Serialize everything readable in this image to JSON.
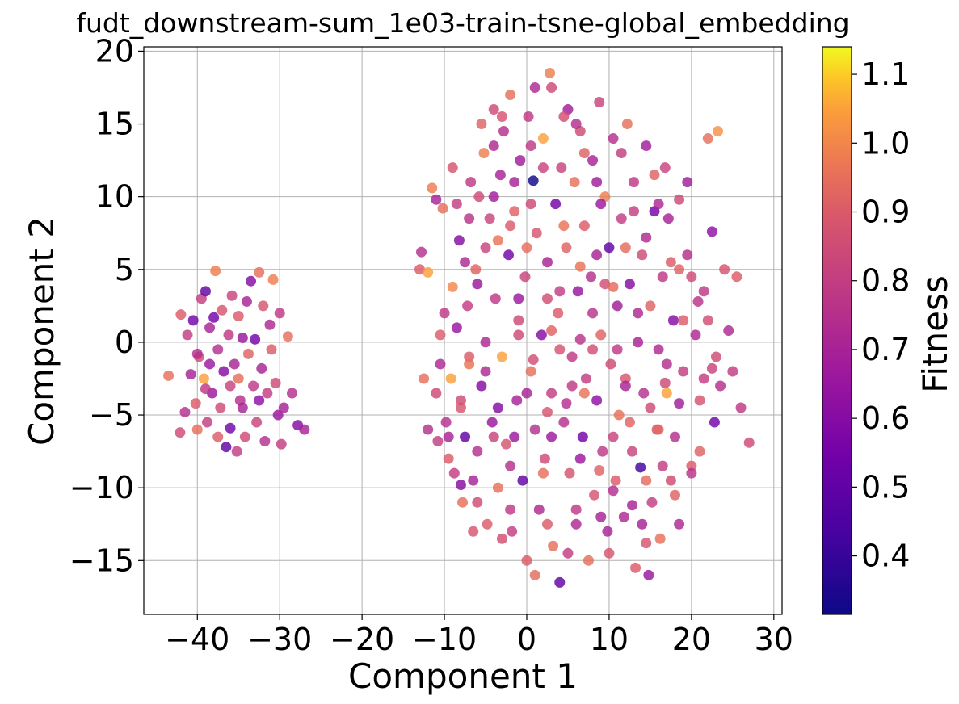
{
  "chart_data": {
    "type": "scatter",
    "title": "fudt_downstream-sum_1e03-train-tsne-global_embedding",
    "xlabel": "Component 1",
    "ylabel": "Component 2",
    "xlim": [
      -46.5,
      31
    ],
    "ylim": [
      -18.7,
      20.3
    ],
    "xticks": [
      -40,
      -30,
      -20,
      -10,
      0,
      10,
      20,
      30
    ],
    "yticks": [
      -15,
      -10,
      -5,
      0,
      5,
      10,
      15,
      20
    ],
    "xtick_labels": [
      "−40",
      "−30",
      "−20",
      "−10",
      "0",
      "10",
      "20",
      "30"
    ],
    "ytick_labels": [
      "−15",
      "−10",
      "−5",
      "0",
      "5",
      "10",
      "15",
      "20"
    ],
    "grid": true,
    "colorbar": {
      "label": "Fitness",
      "colormap": "plasma",
      "range": [
        0.315,
        1.14
      ],
      "ticks": [
        0.4,
        0.5,
        0.6,
        0.7,
        0.8,
        0.9,
        1.0,
        1.1
      ],
      "tick_labels": [
        "0.4",
        "0.5",
        "0.6",
        "0.7",
        "0.8",
        "0.9",
        "1.0",
        "1.1"
      ]
    },
    "points": [
      [
        -43.5,
        -2.3,
        0.95
      ],
      [
        -42.0,
        1.9,
        0.9
      ],
      [
        -42.1,
        -6.2,
        0.85
      ],
      [
        -41.5,
        -4.8,
        0.75
      ],
      [
        -41.2,
        0.5,
        0.8
      ],
      [
        -40.8,
        -2.2,
        0.7
      ],
      [
        -40.5,
        1.5,
        0.55
      ],
      [
        -40.2,
        -4.2,
        0.9
      ],
      [
        -40.0,
        -6.0,
        0.95
      ],
      [
        -39.8,
        -1.0,
        0.85
      ],
      [
        -39.5,
        3.0,
        0.8
      ],
      [
        -39.2,
        -2.5,
        1.05
      ],
      [
        -39.0,
        3.5,
        0.5
      ],
      [
        -38.8,
        -5.5,
        0.8
      ],
      [
        -38.5,
        1.0,
        0.7
      ],
      [
        -38.2,
        -3.5,
        0.65
      ],
      [
        -38.0,
        1.7,
        0.55
      ],
      [
        -37.8,
        4.9,
        0.98
      ],
      [
        -37.5,
        -0.5,
        0.75
      ],
      [
        -37.2,
        -4.5,
        0.85
      ],
      [
        -37.0,
        2.2,
        0.88
      ],
      [
        -36.8,
        -2.0,
        0.6
      ],
      [
        -36.5,
        -7.2,
        0.5
      ],
      [
        -36.2,
        0.5,
        0.78
      ],
      [
        -36.0,
        -5.9,
        0.55
      ],
      [
        -35.8,
        3.2,
        0.82
      ],
      [
        -35.5,
        -1.5,
        0.7
      ],
      [
        -35.2,
        -7.5,
        0.8
      ],
      [
        -35.0,
        1.8,
        0.9
      ],
      [
        -34.8,
        -4.0,
        0.75
      ],
      [
        -34.5,
        0.3,
        0.65
      ],
      [
        -34.2,
        -6.5,
        0.85
      ],
      [
        -34.0,
        2.8,
        0.7
      ],
      [
        -33.8,
        -0.8,
        0.92
      ],
      [
        -33.5,
        4.2,
        0.6
      ],
      [
        -33.2,
        -3.0,
        0.78
      ],
      [
        -33.0,
        0.2,
        0.55
      ],
      [
        -32.8,
        -5.5,
        0.82
      ],
      [
        -32.5,
        4.8,
        0.95
      ],
      [
        -32.2,
        -1.8,
        0.7
      ],
      [
        -32.0,
        2.5,
        0.88
      ],
      [
        -31.8,
        -6.8,
        0.75
      ],
      [
        -31.5,
        -3.5,
        0.8
      ],
      [
        -31.2,
        1.2,
        0.72
      ],
      [
        -31.0,
        -0.5,
        0.9
      ],
      [
        -30.8,
        4.3,
        0.98
      ],
      [
        -30.5,
        -2.8,
        0.85
      ],
      [
        -30.2,
        -5.0,
        0.65
      ],
      [
        -30.0,
        2.0,
        0.78
      ],
      [
        -29.8,
        -7.0,
        0.8
      ],
      [
        -29.5,
        -4.5,
        0.7
      ],
      [
        -29.0,
        0.4,
        0.95
      ],
      [
        -28.5,
        -3.5,
        0.75
      ],
      [
        -27.8,
        -5.7,
        0.6
      ],
      [
        -27.0,
        -6.0,
        0.7
      ],
      [
        -34.5,
        -4.5,
        0.7
      ],
      [
        -36.0,
        -3.0,
        0.82
      ],
      [
        -38.5,
        -1.5,
        0.66
      ],
      [
        -40.0,
        -0.8,
        0.74
      ],
      [
        -37.5,
        -6.5,
        0.9
      ],
      [
        -32.5,
        -4.0,
        0.62
      ],
      [
        -35.0,
        -2.5,
        0.95
      ],
      [
        -39.0,
        -3.2,
        0.78
      ],
      [
        -13.0,
        5.0,
        0.9
      ],
      [
        -12.8,
        6.2,
        0.75
      ],
      [
        -12.5,
        -2.5,
        0.95
      ],
      [
        -12.0,
        4.8,
        1.05
      ],
      [
        -11.5,
        10.6,
        0.98
      ],
      [
        -11.0,
        9.8,
        0.7
      ],
      [
        -10.8,
        -6.8,
        0.8
      ],
      [
        -10.5,
        -1.5,
        0.72
      ],
      [
        -10.2,
        9.2,
        0.95
      ],
      [
        -9.8,
        -5.5,
        0.75
      ],
      [
        -9.5,
        -8.0,
        0.9
      ],
      [
        -9.2,
        -2.5,
        1.05
      ],
      [
        -9.0,
        3.8,
        1.0
      ],
      [
        -8.8,
        -9.0,
        0.8
      ],
      [
        -8.5,
        1.0,
        0.65
      ],
      [
        -8.2,
        7.0,
        0.6
      ],
      [
        -8.0,
        -4.0,
        0.85
      ],
      [
        -7.8,
        -11.0,
        0.95
      ],
      [
        -7.5,
        -6.5,
        0.5
      ],
      [
        -7.2,
        2.5,
        0.8
      ],
      [
        -7.0,
        -1.0,
        0.9
      ],
      [
        -6.8,
        11.0,
        0.78
      ],
      [
        -6.5,
        -9.5,
        0.7
      ],
      [
        -6.2,
        5.0,
        0.92
      ],
      [
        -6.0,
        -7.5,
        0.75
      ],
      [
        -5.8,
        10.0,
        0.85
      ],
      [
        -5.5,
        -3.0,
        0.6
      ],
      [
        -5.2,
        13.0,
        0.98
      ],
      [
        -5.0,
        0.0,
        0.72
      ],
      [
        -4.8,
        -12.5,
        0.9
      ],
      [
        -4.5,
        8.5,
        0.82
      ],
      [
        -4.2,
        -5.5,
        0.65
      ],
      [
        -4.0,
        16.0,
        0.85
      ],
      [
        -3.8,
        3.0,
        0.78
      ],
      [
        -3.5,
        -10.0,
        0.95
      ],
      [
        -3.2,
        11.5,
        0.7
      ],
      [
        -3.0,
        -1.0,
        1.05
      ],
      [
        -2.8,
        14.5,
        0.75
      ],
      [
        -2.5,
        -7.0,
        0.88
      ],
      [
        -2.2,
        6.0,
        0.55
      ],
      [
        -2.0,
        17.0,
        0.95
      ],
      [
        -1.8,
        -13.0,
        0.8
      ],
      [
        -1.5,
        9.0,
        0.92
      ],
      [
        -1.2,
        -4.0,
        0.7
      ],
      [
        -1.0,
        1.5,
        0.85
      ],
      [
        -0.8,
        12.5,
        0.68
      ],
      [
        -0.5,
        -9.5,
        0.5
      ],
      [
        -0.2,
        4.5,
        0.82
      ],
      [
        0.0,
        -15.0,
        0.9
      ],
      [
        0.2,
        15.5,
        0.78
      ],
      [
        0.5,
        -2.0,
        0.95
      ],
      [
        0.8,
        11.1,
        0.32
      ],
      [
        1.0,
        -6.0,
        0.75
      ],
      [
        1.2,
        7.5,
        0.88
      ],
      [
        1.5,
        -11.5,
        0.72
      ],
      [
        1.8,
        0.5,
        0.6
      ],
      [
        2.0,
        14.0,
        1.05
      ],
      [
        2.2,
        -8.0,
        0.85
      ],
      [
        2.5,
        5.5,
        0.7
      ],
      [
        2.8,
        18.5,
        0.98
      ],
      [
        3.0,
        -3.5,
        0.8
      ],
      [
        3.2,
        -14.0,
        0.95
      ],
      [
        3.5,
        9.5,
        0.55
      ],
      [
        3.8,
        2.0,
        0.9
      ],
      [
        4.0,
        -16.5,
        0.5
      ],
      [
        4.2,
        12.0,
        0.82
      ],
      [
        4.5,
        -5.5,
        0.75
      ],
      [
        4.8,
        6.5,
        0.92
      ],
      [
        5.0,
        16.0,
        0.68
      ],
      [
        5.2,
        -9.0,
        0.88
      ],
      [
        5.5,
        -1.0,
        0.78
      ],
      [
        5.8,
        11.0,
        0.95
      ],
      [
        6.0,
        -12.5,
        0.72
      ],
      [
        6.2,
        3.5,
        0.65
      ],
      [
        6.5,
        14.5,
        0.85
      ],
      [
        6.8,
        -6.5,
        0.55
      ],
      [
        7.0,
        8.0,
        0.9
      ],
      [
        7.2,
        -2.5,
        0.8
      ],
      [
        7.5,
        -15.0,
        0.95
      ],
      [
        7.8,
        4.5,
        0.75
      ],
      [
        8.0,
        12.5,
        0.7
      ],
      [
        8.2,
        -10.5,
        0.88
      ],
      [
        8.5,
        -4.0,
        0.62
      ],
      [
        8.8,
        16.5,
        0.82
      ],
      [
        9.0,
        0.5,
        0.92
      ],
      [
        9.2,
        -7.5,
        0.78
      ],
      [
        9.5,
        10.0,
        0.98
      ],
      [
        9.8,
        -13.0,
        0.7
      ],
      [
        10.0,
        6.5,
        0.5
      ],
      [
        10.2,
        -1.5,
        0.85
      ],
      [
        10.5,
        14.0,
        0.75
      ],
      [
        10.8,
        -9.5,
        0.9
      ],
      [
        11.0,
        2.5,
        0.68
      ],
      [
        11.2,
        -5.0,
        0.95
      ],
      [
        11.5,
        8.5,
        0.8
      ],
      [
        11.8,
        -12.0,
        0.72
      ],
      [
        12.0,
        -2.5,
        0.88
      ],
      [
        12.2,
        15.0,
        0.95
      ],
      [
        12.5,
        4.0,
        0.6
      ],
      [
        12.8,
        -7.5,
        0.82
      ],
      [
        13.0,
        11.0,
        0.78
      ],
      [
        13.2,
        -15.5,
        0.9
      ],
      [
        13.5,
        0.0,
        0.7
      ],
      [
        13.8,
        -8.6,
        0.42
      ],
      [
        14.0,
        6.0,
        0.85
      ],
      [
        14.2,
        -3.5,
        0.75
      ],
      [
        14.5,
        13.5,
        0.68
      ],
      [
        14.8,
        -16.0,
        0.65
      ],
      [
        15.0,
        2.5,
        0.92
      ],
      [
        15.2,
        -11.0,
        0.8
      ],
      [
        15.5,
        9.0,
        0.55
      ],
      [
        15.8,
        -6.0,
        0.88
      ],
      [
        16.0,
        -0.5,
        0.72
      ],
      [
        16.2,
        -13.5,
        0.95
      ],
      [
        16.5,
        4.5,
        0.78
      ],
      [
        16.8,
        12.0,
        0.82
      ],
      [
        17.0,
        -3.5,
        1.05
      ],
      [
        17.2,
        8.5,
        0.7
      ],
      [
        17.5,
        -9.5,
        0.85
      ],
      [
        17.8,
        1.5,
        0.6
      ],
      [
        18.0,
        -6.5,
        0.75
      ],
      [
        18.5,
        5.0,
        0.92
      ],
      [
        19.0,
        -2.0,
        0.8
      ],
      [
        19.5,
        11.0,
        0.68
      ],
      [
        20.0,
        -8.5,
        0.9
      ],
      [
        20.5,
        0.5,
        0.72
      ],
      [
        21.0,
        -4.0,
        0.88
      ],
      [
        21.5,
        3.5,
        0.78
      ],
      [
        22.0,
        14.0,
        0.95
      ],
      [
        22.5,
        7.6,
        0.62
      ],
      [
        22.8,
        -5.5,
        0.55
      ],
      [
        23.0,
        -1.0,
        0.85
      ],
      [
        23.2,
        14.5,
        1.02
      ],
      [
        23.5,
        -3.0,
        0.75
      ],
      [
        24.0,
        5.0,
        0.88
      ],
      [
        24.5,
        0.8,
        0.72
      ],
      [
        25.0,
        -2.0,
        0.8
      ],
      [
        25.5,
        4.5,
        0.9
      ],
      [
        26.0,
        -4.5,
        0.78
      ],
      [
        27.0,
        -6.9,
        0.85
      ],
      [
        -8.0,
        -9.8,
        0.6
      ],
      [
        -6.0,
        -11.0,
        0.85
      ],
      [
        -2.0,
        -8.5,
        0.75
      ],
      [
        2.0,
        -9.0,
        0.95
      ],
      [
        6.0,
        -11.5,
        0.78
      ],
      [
        10.0,
        -14.5,
        0.88
      ],
      [
        14.0,
        -12.5,
        0.7
      ],
      [
        18.0,
        -10.5,
        0.92
      ],
      [
        -4.0,
        -6.5,
        0.82
      ],
      [
        0.0,
        -3.5,
        0.7
      ],
      [
        4.0,
        -0.5,
        0.88
      ],
      [
        8.0,
        2.0,
        0.76
      ],
      [
        12.0,
        6.5,
        0.94
      ],
      [
        16.0,
        9.5,
        0.72
      ],
      [
        20.0,
        4.5,
        0.85
      ],
      [
        -10.0,
        2.0,
        0.78
      ],
      [
        -6.0,
        4.0,
        0.66
      ],
      [
        -2.0,
        8.0,
        0.9
      ],
      [
        2.0,
        12.0,
        0.82
      ],
      [
        6.0,
        15.0,
        0.74
      ],
      [
        -4.0,
        10.0,
        0.68
      ],
      [
        0.0,
        6.5,
        0.95
      ],
      [
        4.0,
        3.5,
        0.8
      ],
      [
        8.0,
        -0.5,
        0.86
      ],
      [
        12.0,
        -3.0,
        0.7
      ],
      [
        16.0,
        -6.0,
        0.93
      ],
      [
        20.0,
        -9.0,
        0.76
      ],
      [
        -8.0,
        -4.5,
        0.88
      ],
      [
        -5.0,
        -2.0,
        0.72
      ],
      [
        -1.0,
        0.5,
        0.84
      ],
      [
        3.0,
        -6.5,
        0.66
      ],
      [
        7.0,
        -3.5,
        0.96
      ],
      [
        11.0,
        -0.5,
        0.78
      ],
      [
        15.0,
        -4.5,
        0.85
      ],
      [
        19.0,
        1.5,
        0.9
      ],
      [
        -3.0,
        -13.5,
        0.86
      ],
      [
        1.0,
        -16.0,
        0.94
      ],
      [
        5.0,
        -14.5,
        0.8
      ],
      [
        9.0,
        -12.0,
        0.7
      ],
      [
        -7.0,
        8.5,
        0.76
      ],
      [
        -3.0,
        15.5,
        0.88
      ],
      [
        1.0,
        17.5,
        0.72
      ],
      [
        3.0,
        17.5,
        0.85
      ],
      [
        7.0,
        13.0,
        0.92
      ],
      [
        9.0,
        9.5,
        0.66
      ],
      [
        13.0,
        9.0,
        0.8
      ],
      [
        17.0,
        -1.5,
        0.74
      ],
      [
        21.0,
        -7.5,
        0.92
      ],
      [
        -11.0,
        -3.5,
        0.84
      ],
      [
        -9.5,
        -6.5,
        0.7
      ],
      [
        -7.0,
        -1.5,
        0.96
      ],
      [
        -5.0,
        6.5,
        0.82
      ],
      [
        -1.0,
        3.0,
        0.66
      ],
      [
        3.0,
        0.8,
        0.92
      ],
      [
        5.5,
        -3.0,
        0.78
      ],
      [
        9.5,
        4.0,
        0.86
      ],
      [
        13.5,
        2.0,
        0.72
      ],
      [
        17.5,
        5.5,
        0.9
      ],
      [
        21.5,
        -2.5,
        0.8
      ],
      [
        -12.0,
        -6.0,
        0.75
      ],
      [
        -9.0,
        12.0,
        0.88
      ],
      [
        -4.0,
        13.5,
        0.72
      ],
      [
        0.5,
        9.5,
        0.84
      ],
      [
        4.5,
        8.0,
        0.96
      ],
      [
        8.5,
        11.0,
        0.68
      ],
      [
        11.5,
        13.0,
        0.8
      ],
      [
        15.5,
        11.5,
        0.92
      ],
      [
        19.5,
        6.0,
        0.74
      ],
      [
        22.0,
        1.5,
        0.86
      ],
      [
        -2.0,
        -11.5,
        0.78
      ],
      [
        2.5,
        -12.5,
        0.9
      ],
      [
        6.5,
        -8.0,
        0.66
      ],
      [
        10.5,
        -6.5,
        0.82
      ],
      [
        14.5,
        -9.5,
        0.94
      ],
      [
        18.5,
        -12.5,
        0.72
      ],
      [
        -6.5,
        -13.0,
        0.88
      ],
      [
        -3.5,
        -4.5,
        0.6
      ],
      [
        0.8,
        -1.2,
        0.86
      ],
      [
        4.8,
        -4.2,
        0.74
      ],
      [
        8.8,
        -8.8,
        0.92
      ],
      [
        12.8,
        -11.2,
        0.7
      ],
      [
        16.8,
        -2.8,
        0.84
      ],
      [
        20.8,
        2.8,
        0.76
      ],
      [
        -10.5,
        0.5,
        0.9
      ],
      [
        -7.5,
        5.5,
        0.72
      ],
      [
        -3.5,
        7.0,
        0.96
      ],
      [
        0.5,
        13.5,
        0.78
      ],
      [
        4.5,
        15.5,
        0.86
      ],
      [
        8.5,
        6.0,
        0.7
      ],
      [
        12.5,
        -5.5,
        0.92
      ],
      [
        16.5,
        -8.5,
        0.8
      ],
      [
        -1.5,
        -6.5,
        0.66
      ],
      [
        2.5,
        -4.8,
        0.88
      ],
      [
        6.5,
        0.2,
        0.76
      ],
      [
        10.5,
        3.8,
        0.94
      ],
      [
        14.5,
        7.2,
        0.72
      ],
      [
        18.5,
        9.8,
        0.84
      ],
      [
        -8.5,
        9.5,
        0.8
      ],
      [
        -5.5,
        15.0,
        0.92
      ],
      [
        -1.5,
        11.0,
        0.7
      ],
      [
        2.5,
        3.0,
        0.86
      ],
      [
        6.5,
        5.2,
        0.96
      ],
      [
        10.5,
        -10.2,
        0.74
      ],
      [
        14.5,
        -13.8,
        0.88
      ],
      [
        18.5,
        -4.2,
        0.68
      ],
      [
        22.5,
        -1.8,
        0.82
      ]
    ]
  }
}
